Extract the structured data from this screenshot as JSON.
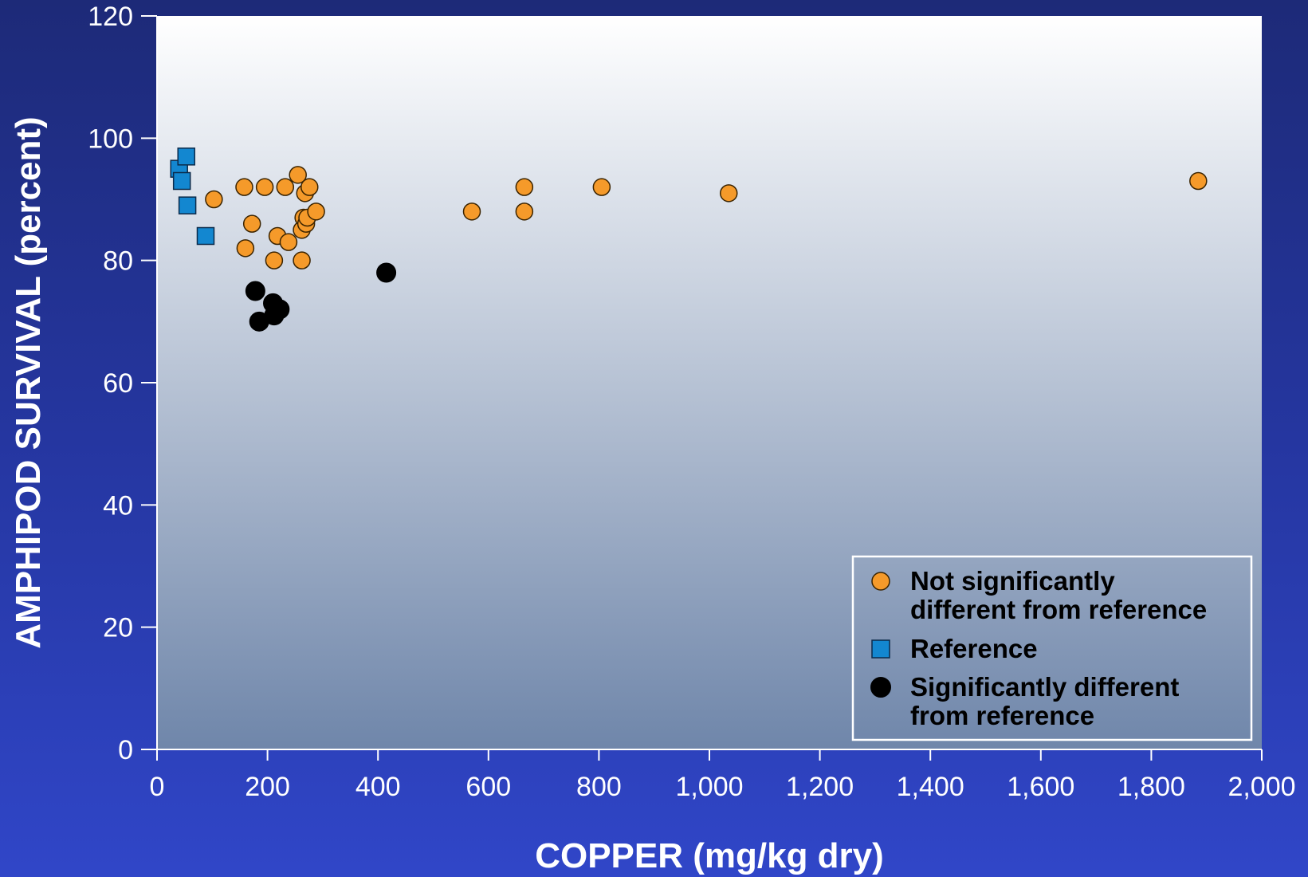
{
  "chart_data": {
    "type": "scatter",
    "title": "",
    "xlabel": "COPPER (mg/kg dry)",
    "ylabel": "AMPHIPOD SURVIVAL (percent)",
    "xlim": [
      0,
      2000
    ],
    "ylim": [
      0,
      120
    ],
    "x_ticks": [
      "0",
      "200",
      "400",
      "600",
      "800",
      "1,000",
      "1,200",
      "1,400",
      "1,600",
      "1,800",
      "2,000"
    ],
    "y_ticks": [
      "0",
      "20",
      "40",
      "60",
      "80",
      "100",
      "120"
    ],
    "grid": false,
    "legend_position": "bottom-right",
    "colors": {
      "not_significant": "#f59a2a",
      "reference": "#1387d0",
      "significant": "#000000",
      "plot_top": "#ffffff",
      "plot_bottom": "#6f86aa"
    },
    "series": [
      {
        "name": "Not significantly different from reference",
        "marker": "circle-orange",
        "points": [
          [
            103,
            90
          ],
          [
            158,
            92
          ],
          [
            160,
            82
          ],
          [
            172,
            86
          ],
          [
            195,
            92
          ],
          [
            212,
            80
          ],
          [
            218,
            84
          ],
          [
            232,
            92
          ],
          [
            238,
            83
          ],
          [
            255,
            94
          ],
          [
            262,
            85
          ],
          [
            262,
            80
          ],
          [
            265,
            87
          ],
          [
            268,
            91
          ],
          [
            270,
            86
          ],
          [
            272,
            87
          ],
          [
            276,
            92
          ],
          [
            288,
            88
          ],
          [
            570,
            88
          ],
          [
            665,
            92
          ],
          [
            665,
            88
          ],
          [
            805,
            92
          ],
          [
            1035,
            91
          ],
          [
            1885,
            93
          ]
        ]
      },
      {
        "name": "Reference",
        "marker": "square-blue",
        "points": [
          [
            40,
            95
          ],
          [
            45,
            93
          ],
          [
            53,
            97
          ],
          [
            55,
            89
          ],
          [
            88,
            84
          ]
        ]
      },
      {
        "name": "Significantly different from reference",
        "marker": "circle-black",
        "points": [
          [
            178,
            75
          ],
          [
            185,
            70
          ],
          [
            210,
            73
          ],
          [
            212,
            71
          ],
          [
            222,
            72
          ],
          [
            415,
            78
          ]
        ]
      }
    ],
    "legend": [
      {
        "marker": "circle-orange",
        "lines": [
          "Not significantly",
          "different from reference"
        ]
      },
      {
        "marker": "square-blue",
        "lines": [
          "Reference"
        ]
      },
      {
        "marker": "circle-black",
        "lines": [
          "Significantly different",
          "from reference"
        ]
      }
    ]
  }
}
